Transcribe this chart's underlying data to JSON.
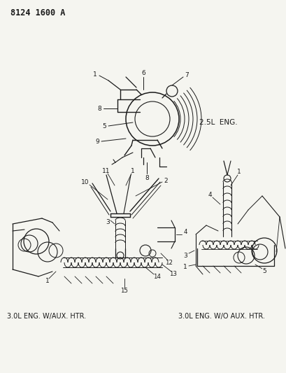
{
  "title": "8124 1600 A",
  "bg_color": "#f5f5f0",
  "line_color": "#1a1a1a",
  "fig_width": 4.1,
  "fig_height": 5.33,
  "dpi": 100,
  "diagram1_label": "2.5L  ENG.",
  "diagram2_label": "3.0L ENG. W/AUX. HTR.",
  "diagram3_label": "3.0L ENG. W/O AUX. HTR."
}
